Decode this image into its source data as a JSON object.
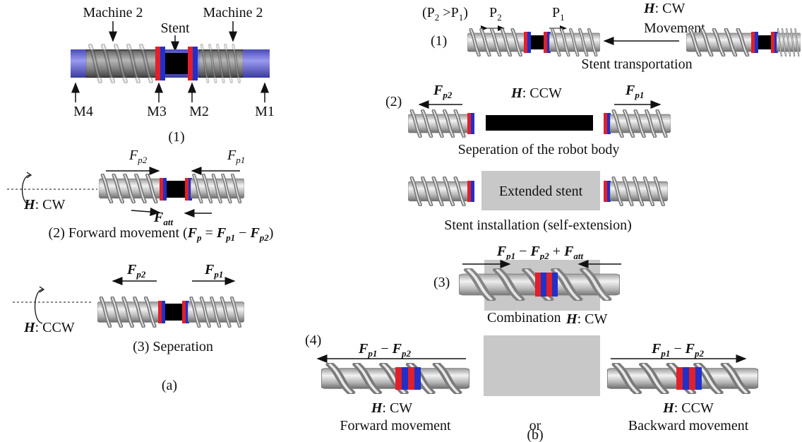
{
  "panel_a": {
    "label": "(a)",
    "s1": {
      "label": "(1)",
      "machine_left": "Machine 2",
      "stent": "Stent",
      "machine_right": "Machine 2",
      "m4": "M4",
      "m3": "M3",
      "m2": "M2",
      "m1": "M1"
    },
    "s2": {
      "f_left": [
        "F",
        "p2"
      ],
      "f_right": [
        "F",
        "p1"
      ],
      "f_att": [
        "F",
        "att"
      ],
      "field": [
        "H",
        ": CW"
      ],
      "caption": [
        "(2) Forward movement (",
        "F",
        "p",
        " = ",
        "F",
        "p1",
        " − ",
        "F",
        "p2",
        ")"
      ]
    },
    "s3": {
      "f_left": [
        "F",
        "p2"
      ],
      "f_right": [
        "F",
        "p1"
      ],
      "field": [
        "H",
        ": CCW"
      ],
      "caption": "(3) Seperation"
    }
  },
  "panel_b": {
    "label": "(b)",
    "s1": {
      "label": "(1)",
      "pitch_relation": [
        "(P",
        "2",
        " >P",
        "1",
        ")"
      ],
      "p2": [
        "P",
        "2"
      ],
      "p1": [
        "P",
        "1"
      ],
      "field": [
        "H",
        ": CW"
      ],
      "movement": "Movement",
      "caption": "Stent transportation"
    },
    "s2": {
      "label": "(2)",
      "f_left": [
        "F",
        "p2"
      ],
      "field": [
        "H",
        ": CCW"
      ],
      "f_right": [
        "F",
        "p1"
      ],
      "caption": "Seperation of the robot body",
      "stent": "Extended stent",
      "caption2": "Stent installation (self-extension)"
    },
    "s3": {
      "label": "(3)",
      "force": [
        "F",
        "p1",
        " − ",
        "F",
        "p2",
        " + ",
        "F",
        "att"
      ],
      "caption": "Combination",
      "field": [
        "H",
        ": CW"
      ]
    },
    "s4": {
      "label": "(4)",
      "f_left": [
        "F",
        "p1",
        " − ",
        "F",
        "p2"
      ],
      "field_left": [
        "H",
        ": CW"
      ],
      "caption_left": "Forward movement",
      "or": "or",
      "f_right": [
        "F",
        "p1",
        " − ",
        "F",
        "p2"
      ],
      "field_right": [
        "H",
        ": CCW"
      ],
      "caption_right": "Backward movement"
    }
  }
}
